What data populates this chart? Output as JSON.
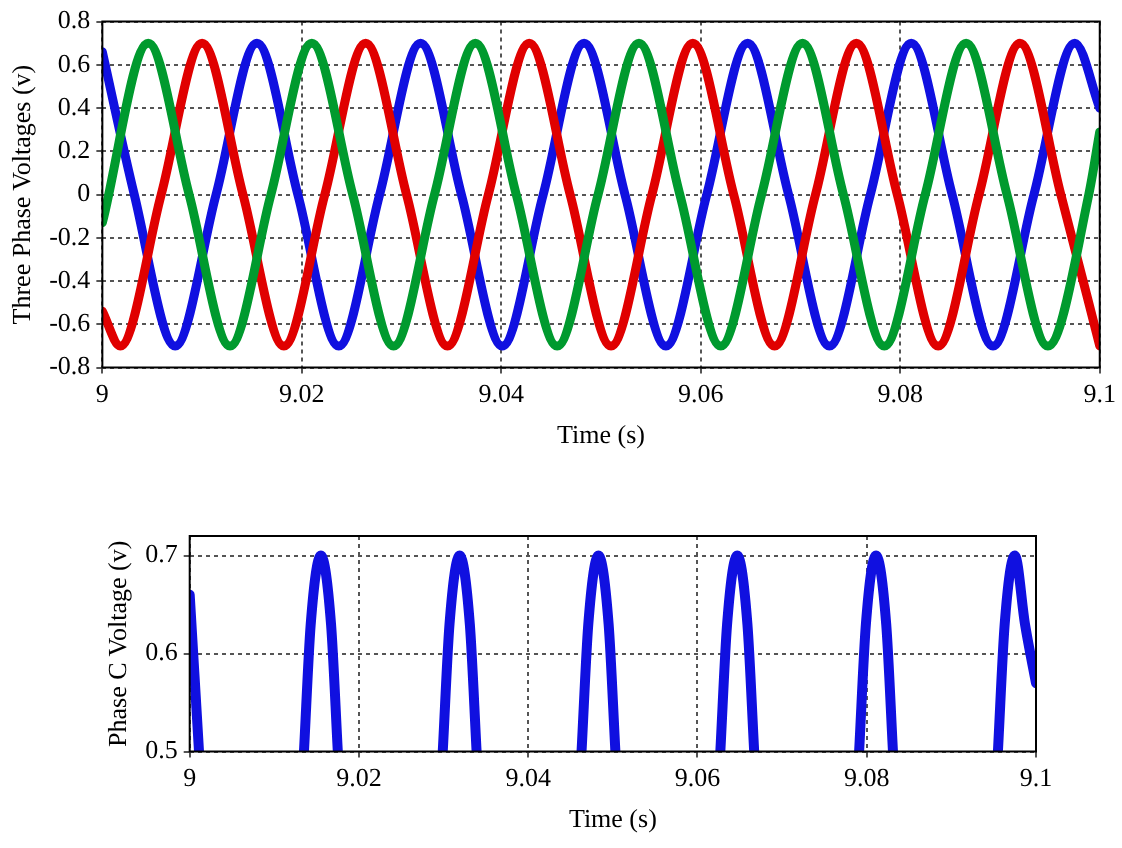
{
  "chart_data": [
    {
      "type": "line",
      "xlabel": "Time (s)",
      "ylabel": "Three Phase Voltages (v)",
      "xlim": [
        9,
        9.1
      ],
      "xticks": [
        9,
        9.02,
        9.04,
        9.06,
        9.08,
        9.1
      ],
      "ylim": [
        -0.8,
        0.8
      ],
      "yticks": [
        -0.8,
        -0.6,
        -0.4,
        -0.2,
        0,
        0.2,
        0.4,
        0.6,
        0.8
      ],
      "grid": true,
      "marker": "none",
      "line_style": "solid",
      "series": [
        {
          "color": "#009a2e",
          "x": [
            9.0,
            9.0046,
            9.0087,
            9.0128,
            9.0169,
            9.021,
            9.0251,
            9.0292,
            9.0333,
            9.0374,
            9.0415,
            9.0456,
            9.0497,
            9.0538,
            9.0579,
            9.062,
            9.0661,
            9.0702,
            9.0743,
            9.0784,
            9.0825,
            9.0866,
            9.0907,
            9.0948,
            9.0989,
            9.1
          ],
          "values": [
            -0.13,
            0.7,
            0,
            -0.7,
            0,
            0.7,
            0,
            -0.7,
            0,
            0.7,
            0,
            -0.7,
            0,
            0.7,
            0,
            -0.7,
            0,
            0.7,
            0,
            -0.7,
            0,
            0.7,
            0,
            -0.7,
            0,
            0.29
          ]
        },
        {
          "color": "#e00000",
          "x": [
            9.0,
            9.0018,
            9.0059,
            9.01,
            9.0141,
            9.0182,
            9.0223,
            9.0264,
            9.0305,
            9.0346,
            9.0387,
            9.0428,
            9.0469,
            9.051,
            9.0551,
            9.0592,
            9.0633,
            9.0674,
            9.0715,
            9.0756,
            9.0797,
            9.0838,
            9.0879,
            9.092,
            9.0961,
            9.1
          ],
          "values": [
            -0.54,
            -0.7,
            0,
            0.7,
            0,
            -0.7,
            0,
            0.7,
            0,
            -0.7,
            0,
            0.7,
            0,
            -0.7,
            0,
            0.7,
            0,
            -0.7,
            0,
            0.7,
            0,
            -0.7,
            0,
            0.7,
            0,
            -0.7
          ]
        },
        {
          "color": "#1010e0",
          "x": [
            9.0,
            9.0032,
            9.0073,
            9.0114,
            9.0155,
            9.0196,
            9.0237,
            9.0278,
            9.0319,
            9.036,
            9.0401,
            9.0442,
            9.0483,
            9.0524,
            9.0565,
            9.0606,
            9.0647,
            9.0688,
            9.0729,
            9.077,
            9.0811,
            9.0852,
            9.0893,
            9.0934,
            9.0975,
            9.1
          ],
          "values": [
            0.66,
            0,
            -0.7,
            0,
            0.7,
            0,
            -0.7,
            0,
            0.7,
            0,
            -0.7,
            0,
            0.7,
            0,
            -0.7,
            0,
            0.7,
            0,
            -0.7,
            0,
            0.7,
            0,
            -0.7,
            0,
            0.7,
            0.4
          ]
        }
      ]
    },
    {
      "type": "line",
      "xlabel": "Time (s)",
      "ylabel": "Phase C Voltage (v)",
      "xlim": [
        9,
        9.1
      ],
      "xticks": [
        9,
        9.02,
        9.04,
        9.06,
        9.08,
        9.1
      ],
      "ylim": [
        0.5,
        0.72
      ],
      "yticks": [
        0.5,
        0.6,
        0.7
      ],
      "grid": true,
      "marker": "none",
      "line_style": "solid",
      "series": [
        {
          "color": "#1010e0",
          "x": [
            9.0,
            9.0011,
            9.0073,
            9.0135,
            9.0143,
            9.0155,
            9.0167,
            9.0175,
            9.0237,
            9.0299,
            9.0307,
            9.0319,
            9.0331,
            9.0339,
            9.0401,
            9.0463,
            9.0471,
            9.0483,
            9.0495,
            9.0503,
            9.0565,
            9.0627,
            9.0635,
            9.0647,
            9.0659,
            9.0667,
            9.0729,
            9.0791,
            9.0799,
            9.0811,
            9.0823,
            9.0831,
            9.0893,
            9.0955,
            9.0963,
            9.0975,
            9.0987,
            9.1
          ],
          "values": [
            0.66,
            0.5,
            null,
            0.5,
            0.63,
            0.7,
            0.63,
            0.5,
            null,
            0.5,
            0.63,
            0.7,
            0.63,
            0.5,
            null,
            0.5,
            0.63,
            0.7,
            0.63,
            0.5,
            null,
            0.5,
            0.63,
            0.7,
            0.63,
            0.5,
            null,
            0.5,
            0.63,
            0.7,
            0.63,
            0.5,
            null,
            0.5,
            0.63,
            0.7,
            0.63,
            0.57
          ]
        }
      ]
    }
  ]
}
